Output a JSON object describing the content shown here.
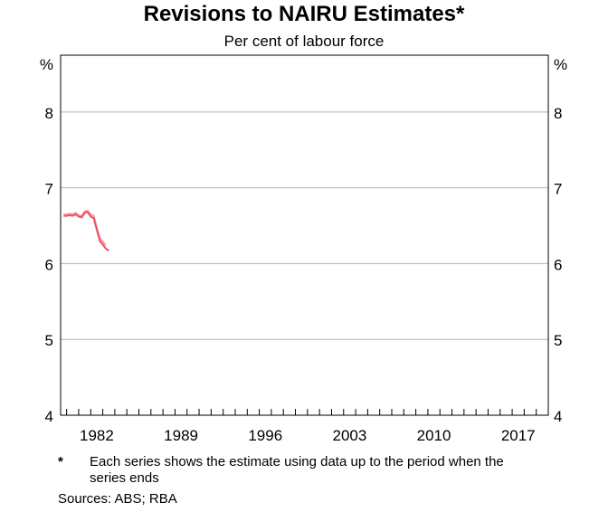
{
  "chart_data": {
    "type": "line",
    "title": "Revisions to NAIRU Estimates*",
    "subtitle": "Per cent of labour force",
    "y_unit_left": "%",
    "y_unit_right": "%",
    "ylim": [
      4,
      8.75
    ],
    "yticks": [
      4,
      5,
      6,
      7,
      8
    ],
    "xlim": [
      1979.5,
      2020.0
    ],
    "xticks": [
      1982,
      1989,
      1996,
      2003,
      2010,
      2017
    ],
    "grid": true,
    "series": [
      {
        "color": "#e8535f",
        "x": [
          1979.75,
          1980.0,
          1980.25,
          1980.5,
          1980.75,
          1981.0,
          1981.25,
          1981.5,
          1981.75,
          1982.0,
          1982.25,
          1982.5,
          1982.75,
          1983.0,
          1983.25,
          1983.5
        ],
        "values": [
          6.63,
          6.63,
          6.64,
          6.63,
          6.65,
          6.62,
          6.61,
          6.67,
          6.68,
          6.62,
          6.6,
          6.45,
          6.3,
          6.25,
          6.2,
          6.17
        ]
      },
      {
        "color": "#f4a0a8",
        "x": [
          1979.75,
          1980.0,
          1980.25,
          1980.5,
          1980.75,
          1981.0,
          1981.25,
          1981.5,
          1981.75,
          1982.0,
          1982.25,
          1982.5,
          1982.75,
          1983.0,
          1983.25
        ],
        "values": [
          6.65,
          6.65,
          6.66,
          6.65,
          6.67,
          6.64,
          6.63,
          6.69,
          6.7,
          6.65,
          6.63,
          6.48,
          6.34,
          6.29,
          6.24
        ]
      }
    ]
  },
  "footnote": {
    "mark": "*",
    "text": "Each series shows the estimate using data up to the period when the series ends"
  },
  "sources": "Sources: ABS; RBA"
}
